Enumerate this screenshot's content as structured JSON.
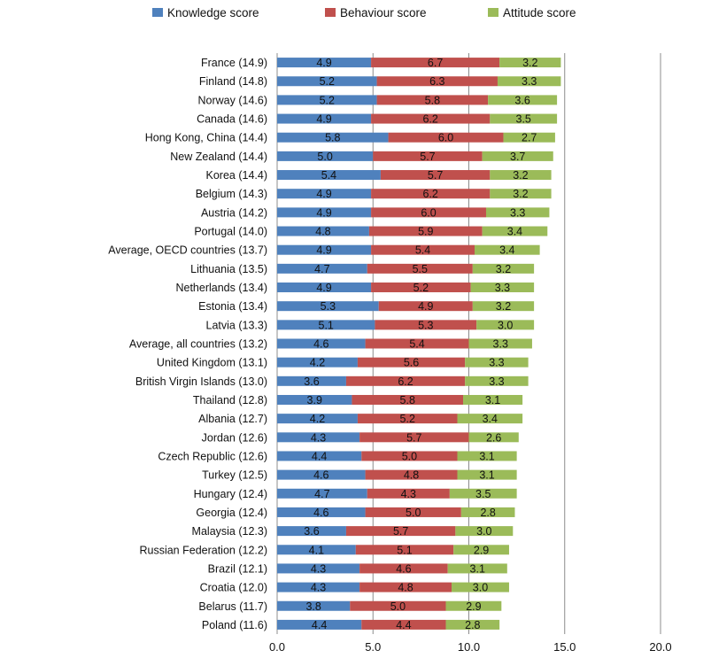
{
  "chart_data": {
    "type": "bar",
    "orientation": "horizontal",
    "stacked": true,
    "categories": [
      "France (14.9)",
      "Finland (14.8)",
      "Norway (14.6)",
      "Canada (14.6)",
      "Hong Kong, China (14.4)",
      "New Zealand (14.4)",
      "Korea (14.4)",
      "Belgium (14.3)",
      "Austria (14.2)",
      "Portugal (14.0)",
      "Average, OECD countries (13.7)",
      "Lithuania (13.5)",
      "Netherlands (13.4)",
      "Estonia (13.4)",
      "Latvia (13.3)",
      "Average, all countries (13.2)",
      "United Kingdom (13.1)",
      "British Virgin Islands (13.0)",
      "Thailand (12.8)",
      "Albania (12.7)",
      "Jordan (12.6)",
      "Czech Republic (12.6)",
      "Turkey (12.5)",
      "Hungary (12.4)",
      "Georgia (12.4)",
      "Malaysia (12.3)",
      "Russian Federation (12.2)",
      "Brazil (12.1)",
      "Croatia (12.0)",
      "Belarus (11.7)",
      "Poland (11.6)"
    ],
    "series": [
      {
        "name": "Knowledge score",
        "color": "#4f81bd",
        "values": [
          4.9,
          5.2,
          5.2,
          4.9,
          5.8,
          5.0,
          5.4,
          4.9,
          4.9,
          4.8,
          4.9,
          4.7,
          4.9,
          5.3,
          5.1,
          4.6,
          4.2,
          3.6,
          3.9,
          4.2,
          4.3,
          4.4,
          4.6,
          4.7,
          4.6,
          3.6,
          4.1,
          4.3,
          4.3,
          3.8,
          4.4
        ]
      },
      {
        "name": "Behaviour score",
        "color": "#c0504d",
        "values": [
          6.7,
          6.3,
          5.8,
          6.2,
          6.0,
          5.7,
          5.7,
          6.2,
          6.0,
          5.9,
          5.4,
          5.5,
          5.2,
          4.9,
          5.3,
          5.4,
          5.6,
          6.2,
          5.8,
          5.2,
          5.7,
          5.0,
          4.8,
          4.3,
          5.0,
          5.7,
          5.1,
          4.6,
          4.8,
          5.0,
          4.4
        ]
      },
      {
        "name": "Attitude score",
        "color": "#9bbb59",
        "values": [
          3.2,
          3.3,
          3.6,
          3.5,
          2.7,
          3.7,
          3.2,
          3.2,
          3.3,
          3.4,
          3.4,
          3.2,
          3.3,
          3.2,
          3.0,
          3.3,
          3.3,
          3.3,
          3.1,
          3.4,
          2.6,
          3.1,
          3.1,
          3.5,
          2.8,
          3.0,
          2.9,
          3.1,
          3.0,
          2.9,
          2.8
        ]
      }
    ],
    "xlim": [
      0,
      20
    ],
    "xticks": [
      "0.0",
      "5.0",
      "10.0",
      "15.0",
      "20.0"
    ],
    "grid": true,
    "legend": "top",
    "title": "",
    "xlabel": "",
    "ylabel": ""
  }
}
